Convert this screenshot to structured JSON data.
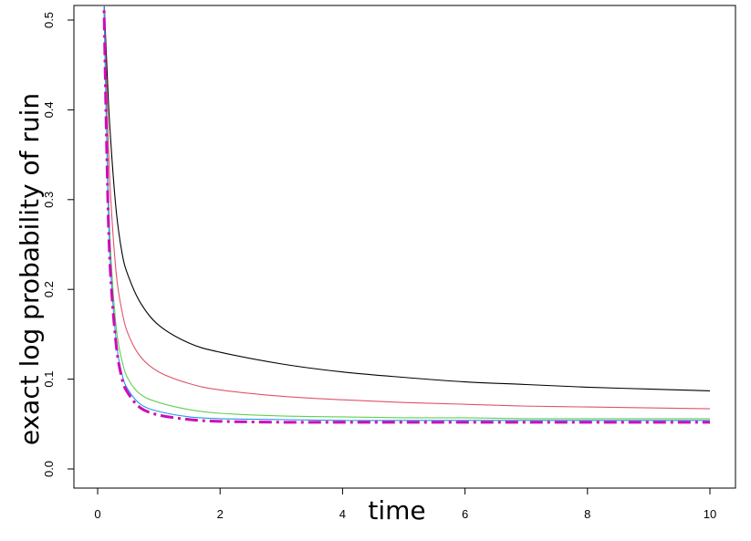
{
  "chart_data": {
    "type": "line",
    "title": "",
    "xlabel": "time",
    "ylabel": "exact log probability of ruin",
    "xlim": [
      0,
      10
    ],
    "ylim": [
      0,
      0.5
    ],
    "xticks": [
      "0",
      "2",
      "4",
      "6",
      "8",
      "10"
    ],
    "yticks": [
      "0.0",
      "0.1",
      "0.2",
      "0.3",
      "0.4",
      "0.5"
    ],
    "grid": false,
    "legend": "none",
    "series": [
      {
        "color": "#000000",
        "style": "solid",
        "x": [
          0.1,
          0.15,
          0.2,
          0.3,
          0.4,
          0.5,
          0.7,
          1.0,
          1.5,
          2.0,
          3.0,
          4.0,
          5.0,
          6.0,
          7.0,
          8.0,
          9.0,
          10.0
        ],
        "y": [
          0.53,
          0.45,
          0.38,
          0.29,
          0.24,
          0.215,
          0.185,
          0.16,
          0.14,
          0.13,
          0.117,
          0.108,
          0.102,
          0.097,
          0.094,
          0.091,
          0.089,
          0.087
        ]
      },
      {
        "color": "#df536b",
        "style": "solid",
        "x": [
          0.1,
          0.15,
          0.2,
          0.3,
          0.4,
          0.5,
          0.7,
          1.0,
          1.5,
          2.0,
          3.0,
          4.0,
          5.0,
          6.0,
          7.0,
          8.0,
          9.0,
          10.0
        ],
        "y": [
          0.53,
          0.42,
          0.32,
          0.22,
          0.175,
          0.15,
          0.125,
          0.108,
          0.095,
          0.088,
          0.081,
          0.077,
          0.074,
          0.072,
          0.07,
          0.069,
          0.068,
          0.067
        ]
      },
      {
        "color": "#61d04f",
        "style": "solid",
        "x": [
          0.1,
          0.15,
          0.2,
          0.3,
          0.4,
          0.5,
          0.7,
          1.0,
          1.5,
          2.0,
          3.0,
          4.0,
          5.0,
          6.0,
          7.0,
          8.0,
          9.0,
          10.0
        ],
        "y": [
          0.53,
          0.38,
          0.26,
          0.16,
          0.12,
          0.1,
          0.083,
          0.074,
          0.066,
          0.062,
          0.059,
          0.058,
          0.057,
          0.057,
          0.056,
          0.056,
          0.056,
          0.056
        ]
      },
      {
        "color": "#2297e6",
        "style": "solid",
        "x": [
          0.1,
          0.15,
          0.2,
          0.3,
          0.4,
          0.5,
          0.7,
          1.0,
          1.5,
          2.0,
          3.0,
          4.0,
          5.0,
          6.0,
          7.0,
          8.0,
          9.0,
          10.0
        ],
        "y": [
          0.53,
          0.36,
          0.24,
          0.145,
          0.105,
          0.088,
          0.072,
          0.064,
          0.058,
          0.056,
          0.055,
          0.054,
          0.054,
          0.054,
          0.054,
          0.054,
          0.054,
          0.054
        ]
      },
      {
        "color": "#cd0bbc",
        "style": "dashdot",
        "x": [
          0.1,
          0.15,
          0.2,
          0.3,
          0.4,
          0.5,
          0.7,
          1.0,
          1.5,
          2.0,
          3.0,
          4.0,
          5.0,
          6.0,
          7.0,
          8.0,
          9.0,
          10.0
        ],
        "y": [
          0.53,
          0.35,
          0.23,
          0.14,
          0.1,
          0.084,
          0.068,
          0.06,
          0.055,
          0.053,
          0.052,
          0.052,
          0.052,
          0.052,
          0.052,
          0.052,
          0.052,
          0.052
        ]
      }
    ]
  }
}
